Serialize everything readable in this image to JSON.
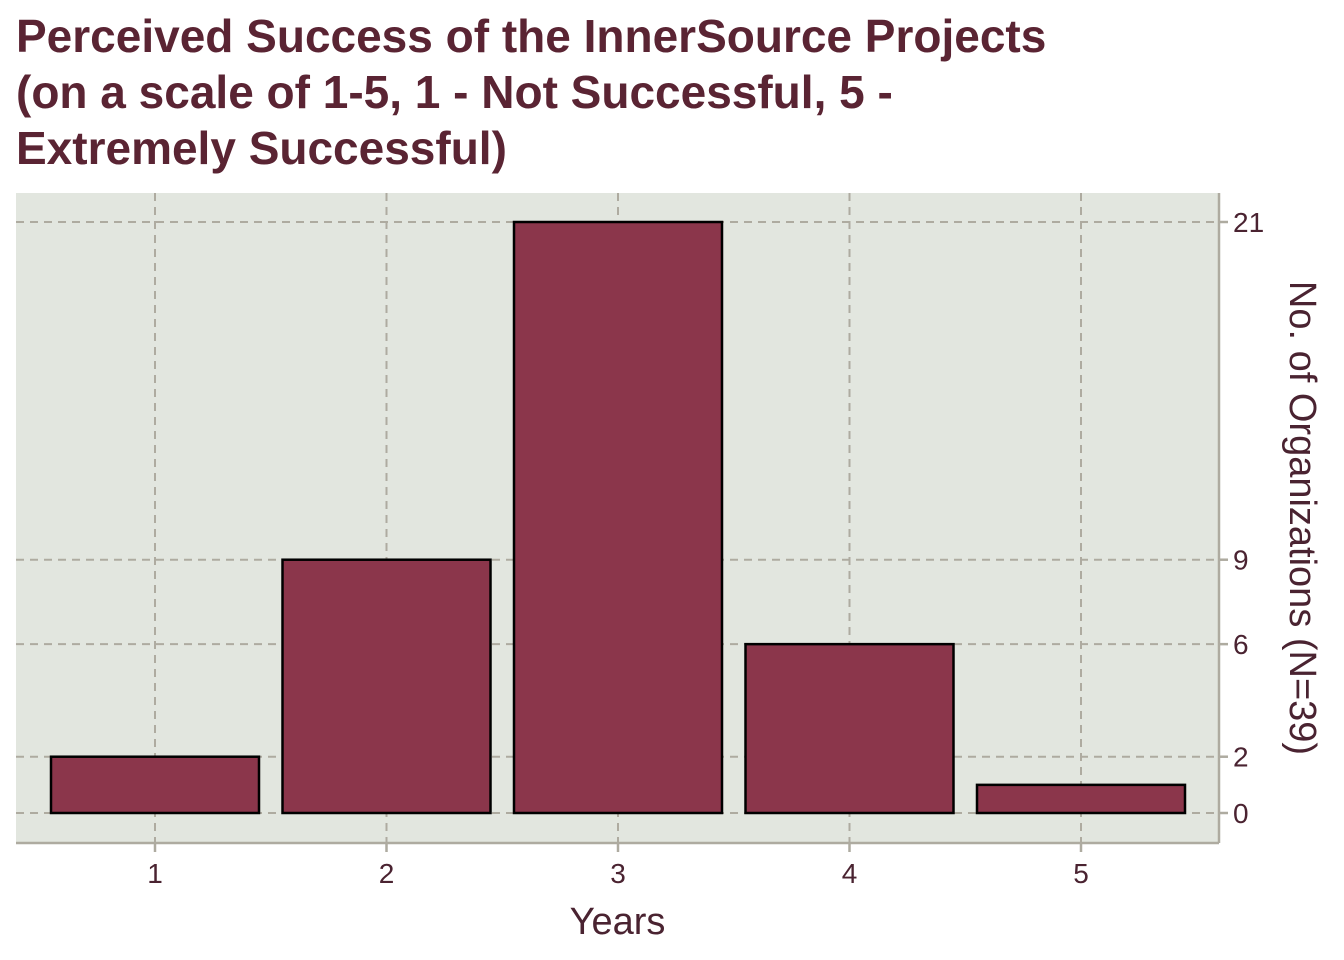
{
  "title_lines": [
    "Perceived Success of the InnerSource Projects",
    "(on a scale of 1-5, 1 - Not Successful, 5 -",
    "Extremely Successful)"
  ],
  "chart_data": {
    "type": "bar",
    "title": "Perceived Success of the InnerSource Projects (on a scale of 1-5, 1 - Not Successful, 5 - Extremely Successful)",
    "categories": [
      "1",
      "2",
      "3",
      "4",
      "5"
    ],
    "values": [
      2,
      9,
      21,
      6,
      1
    ],
    "xlabel": "Years",
    "ylabel": "No. of Organizations (N=39)",
    "y_ticks": [
      0,
      2,
      6,
      9,
      21
    ],
    "ylim": [
      -1,
      22
    ],
    "y_axis_side": "right",
    "grid": true,
    "colors": {
      "bar_fill": "#8b364b",
      "bar_stroke": "#000000",
      "plot_background": "#e2e6df",
      "grid": "#aeaba0",
      "text": "#4a2331",
      "title": "#5a2433"
    }
  }
}
